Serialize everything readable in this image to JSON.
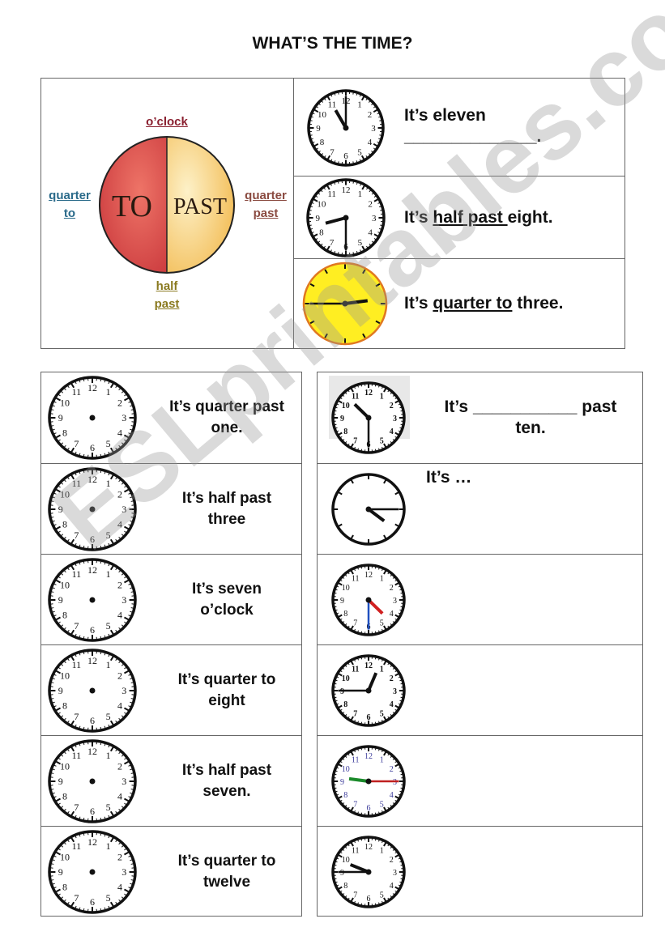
{
  "title": "WHAT’S THE TIME?",
  "watermark": "ESLprintables.com",
  "diagram": {
    "left_word": "TO",
    "right_word": "PAST",
    "top_label": "o’clock",
    "left_label": [
      "quarter",
      "to"
    ],
    "right_label": [
      "quarter",
      "past"
    ],
    "bottom_label": [
      "half",
      "past"
    ],
    "colors": {
      "to": "#e0514a",
      "past": "#f8d47e"
    }
  },
  "examples": [
    {
      "prefix": "It’s eleven",
      "answer": "",
      "blank": "______________.",
      "suffix": "",
      "time": "11:00"
    },
    {
      "prefix": "It’s ",
      "answer": "half past ",
      "suffix": "eight.",
      "time": "8:30"
    },
    {
      "prefix": "It’s ",
      "answer": "quarter to",
      "suffix": " three.",
      "time": "2:45"
    }
  ],
  "draw_rows": [
    {
      "line1": "It’s quarter past",
      "line2": "one."
    },
    {
      "line1": "It’s half past",
      "line2": "three"
    },
    {
      "line1": "It’s seven",
      "line2": "o’clock"
    },
    {
      "line1": "It’s quarter to",
      "line2": "eight"
    },
    {
      "line1": "It’s half past",
      "line2": "seven."
    },
    {
      "line1": "It’s quarter to",
      "line2": "twelve"
    }
  ],
  "read_rows": [
    {
      "line1": "It’s ___________ past",
      "line2": "ten.",
      "time": "10:30"
    },
    {
      "line1": "It’s …",
      "line2": "",
      "time": "4:15"
    },
    {
      "line1": "",
      "line2": "",
      "time": "4:30"
    },
    {
      "line1": "",
      "line2": "",
      "time": "12:45"
    },
    {
      "line1": "",
      "line2": "",
      "time": "9:15"
    },
    {
      "line1": "",
      "line2": "",
      "time": "9:45"
    }
  ]
}
